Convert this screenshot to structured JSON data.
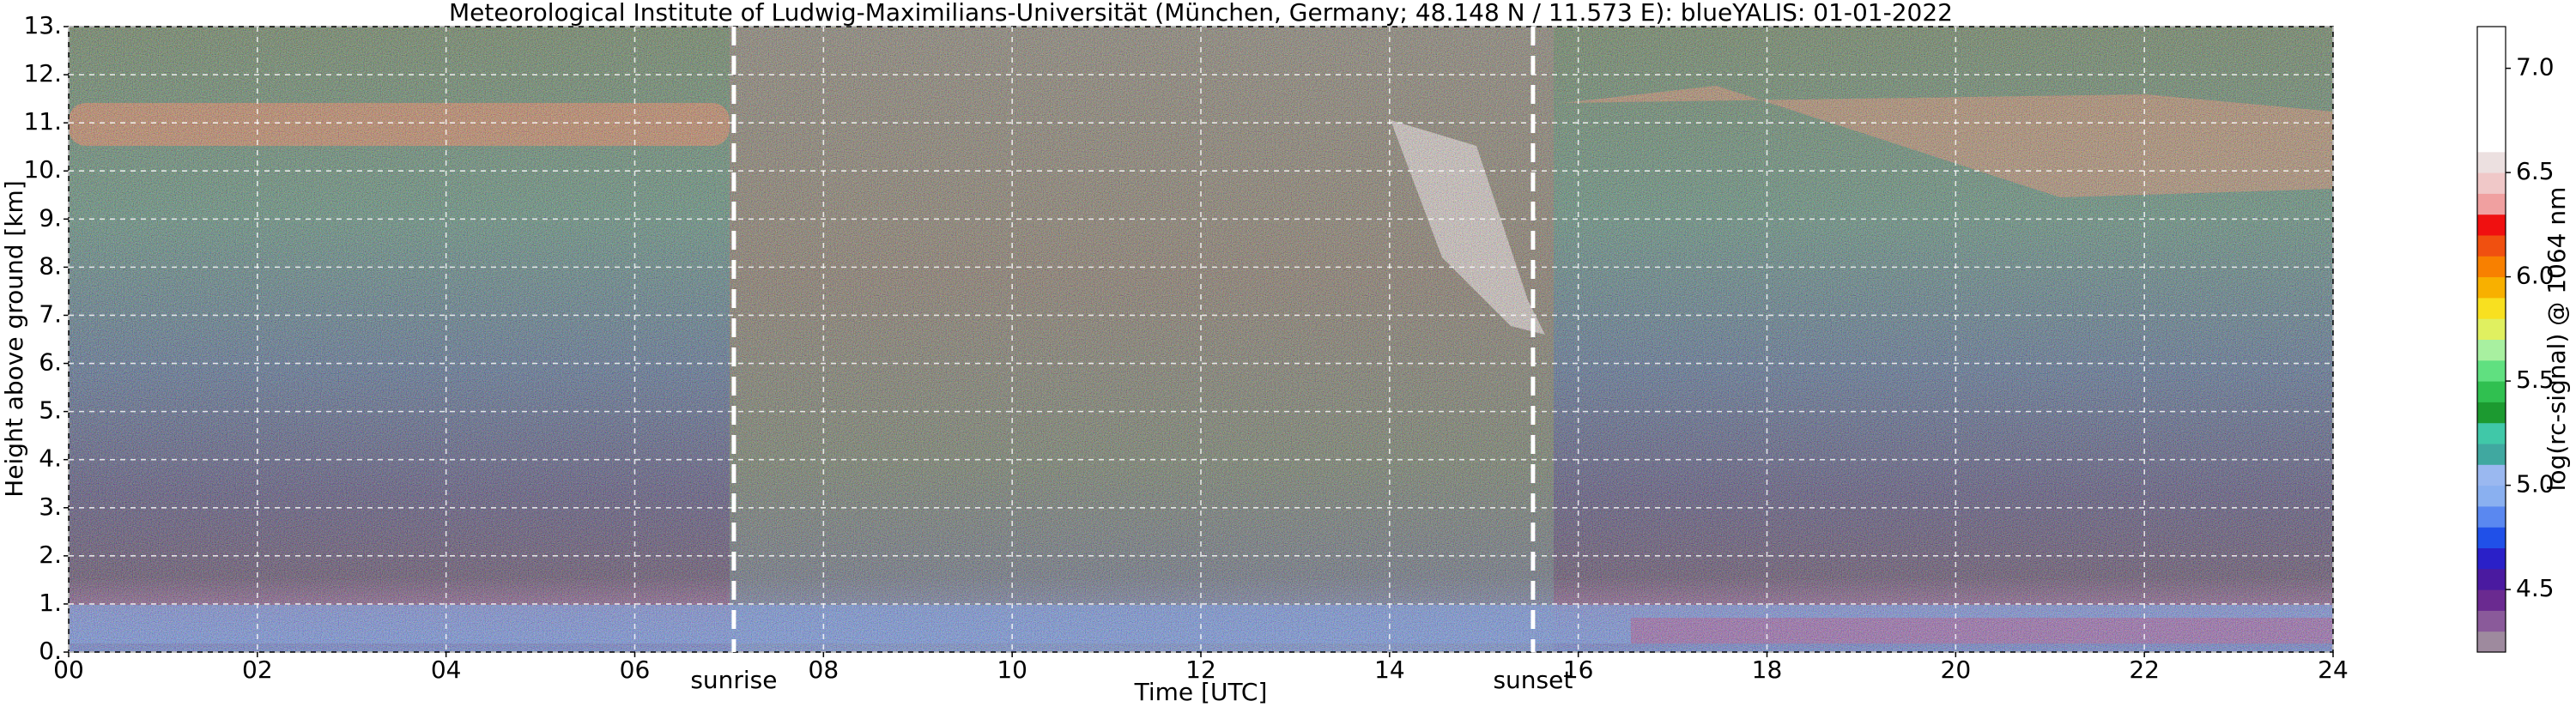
{
  "chart_data": {
    "type": "heatmap",
    "title": "Meteorological Institute of Ludwig-Maximilians-Universität (München, Germany; 48.148 N / 11.573 E):    blueYALIS: 01-01-2022",
    "x_label": "Time [UTC]",
    "y_label": "Height above ground [km]",
    "xlim": [
      0,
      24
    ],
    "xticks": [
      {
        "value": 0,
        "label": "00"
      },
      {
        "value": 2,
        "label": "02"
      },
      {
        "value": 4,
        "label": "04"
      },
      {
        "value": 6,
        "label": "06"
      },
      {
        "value": 8,
        "label": "08"
      },
      10,
      12,
      14,
      16,
      18,
      20,
      22,
      24
    ],
    "ylim": [
      0,
      13
    ],
    "yticks": [
      {
        "value": 0,
        "label": "0."
      },
      {
        "value": 1,
        "label": "1."
      },
      {
        "value": 2,
        "label": "2."
      },
      {
        "value": 3,
        "label": "3."
      },
      {
        "value": 4,
        "label": "4."
      },
      {
        "value": 5,
        "label": "5."
      },
      {
        "value": 6,
        "label": "6."
      },
      {
        "value": 7,
        "label": "7."
      },
      {
        "value": 8,
        "label": "8."
      },
      {
        "value": 9,
        "label": "9."
      },
      {
        "value": 10,
        "label": "10."
      },
      {
        "value": 11,
        "label": "11."
      },
      {
        "value": 12,
        "label": "12."
      },
      {
        "value": 13,
        "label": "13."
      }
    ],
    "grid": true,
    "annotations": [
      {
        "text": "sunrise",
        "x": 7.05
      },
      {
        "text": "sunset",
        "x": 15.52
      }
    ],
    "colorbar": {
      "label": "log(rc-signal) @ 1064 nm",
      "lim": [
        4.2,
        7.2
      ],
      "ticks": [
        4.5,
        {
          "value": 5,
          "label": "5.0"
        },
        5.5,
        {
          "value": 6,
          "label": "6.0"
        },
        6.5,
        {
          "value": 7,
          "label": "7.0"
        }
      ],
      "colors": [
        "#9e8a9e",
        "#8a5a9a",
        "#6a2a90",
        "#4a1aa0",
        "#2a20c8",
        "#2050e8",
        "#5a88f0",
        "#8ab0f0",
        "#9ab8f0",
        "#40a8a0",
        "#40c8a8",
        "#1c9a30",
        "#30c050",
        "#60e080",
        "#a8f0a0",
        "#e0f060",
        "#f8e020",
        "#f8b000",
        "#f88000",
        "#f05010",
        "#f01010",
        "#f0a0a0",
        "#f0c8c8",
        "#ece0e0",
        "#ffffff",
        "#ffffff",
        "#ffffff",
        "#ffffff",
        "#ffffff",
        "#ffffff"
      ]
    }
  }
}
